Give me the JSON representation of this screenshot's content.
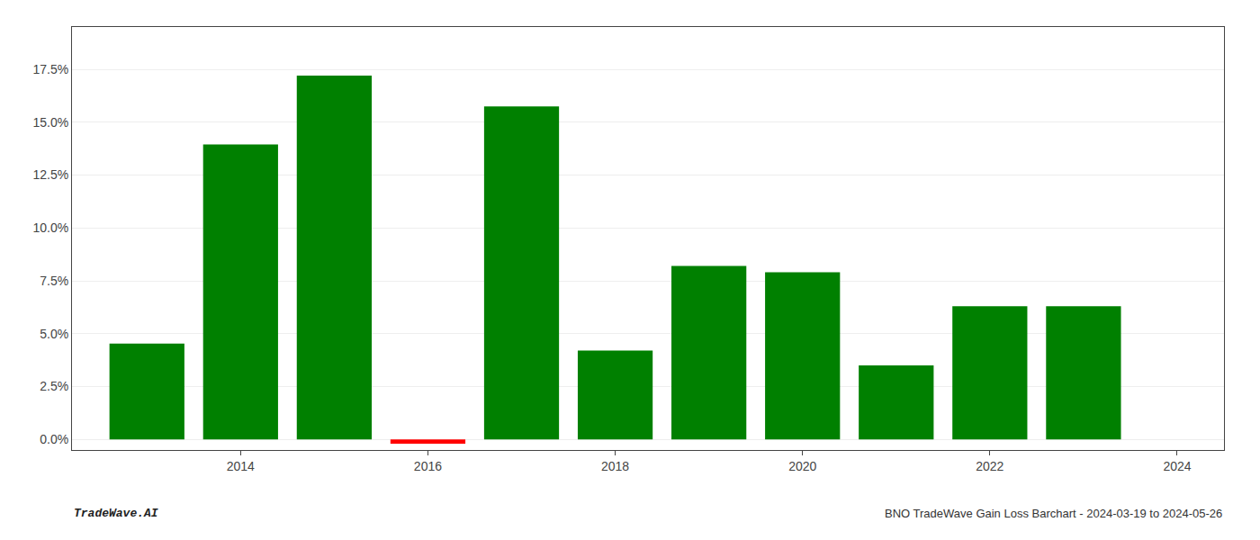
{
  "chart_data": {
    "type": "bar",
    "x": [
      2013,
      2014,
      2015,
      2016,
      2017,
      2018,
      2019,
      2020,
      2021,
      2022,
      2023
    ],
    "values": [
      0.0453,
      0.1395,
      0.172,
      -0.002,
      0.1575,
      0.042,
      0.082,
      0.079,
      0.035,
      0.063,
      0.063
    ],
    "colors": [
      "#008000",
      "#008000",
      "#008000",
      "#ff0000",
      "#008000",
      "#008000",
      "#008000",
      "#008000",
      "#008000",
      "#008000",
      "#008000"
    ],
    "xlim": [
      2012.2,
      2024.5
    ],
    "xticks": [
      2014,
      2016,
      2018,
      2020,
      2022,
      2024
    ],
    "ylim": [
      -0.005,
      0.195
    ],
    "yticks": [
      {
        "value": 0.0,
        "label": "0.0%"
      },
      {
        "value": 0.025,
        "label": "2.5%"
      },
      {
        "value": 0.05,
        "label": "5.0%"
      },
      {
        "value": 0.075,
        "label": "7.5%"
      },
      {
        "value": 0.1,
        "label": "10.0%"
      },
      {
        "value": 0.125,
        "label": "12.5%"
      },
      {
        "value": 0.15,
        "label": "15.0%"
      },
      {
        "value": 0.175,
        "label": "17.5%"
      }
    ],
    "grid": true,
    "annotations": [
      "TradeWave.AI",
      "BNO TradeWave Gain Loss Barchart - 2024-03-19 to 2024-05-26"
    ]
  }
}
